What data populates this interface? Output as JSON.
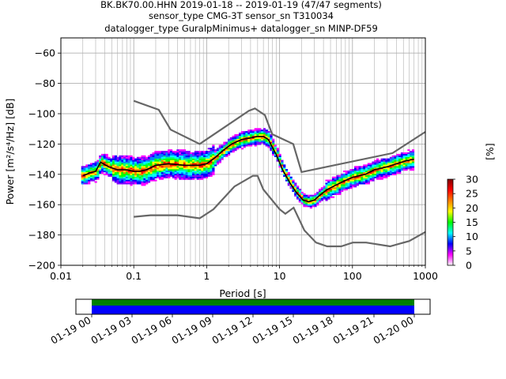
{
  "chart_data": {
    "type": "heatmap",
    "title_lines": [
      "BK.BK70.00.HHN   2019-01-18 -- 2019-01-19  (47/47 segments)",
      "sensor_type CMG-3T sensor_sn T310034",
      "datalogger_type GuralpMinimus+ datalogger_sn MINP-DF59"
    ],
    "xlabel": "Period [s]",
    "ylabel": "Power [m²/s⁴/Hz] [dB]",
    "xscale": "log",
    "xlim": [
      0.01,
      1000
    ],
    "ylim": [
      -200,
      -50
    ],
    "xtick_labels": [
      "0.01",
      "0.1",
      "1",
      "10",
      "100",
      "1000"
    ],
    "xtick_values": [
      0.01,
      0.1,
      1,
      10,
      100,
      1000
    ],
    "ytick_values": [
      -60,
      -80,
      -100,
      -120,
      -140,
      -160,
      -180,
      -200
    ],
    "grid": true,
    "colorbar": {
      "label": "[%]",
      "range": [
        0,
        30
      ],
      "tick_values": [
        0,
        5,
        10,
        15,
        20,
        25,
        30
      ],
      "colors": [
        "#ffffff",
        "#ff00ff",
        "#0000ff",
        "#00ffff",
        "#00ff00",
        "#ffff00",
        "#ff8000",
        "#ff0000",
        "#800000"
      ]
    },
    "noise_model_color": "#666666",
    "nhnm": {
      "period": [
        0.1,
        0.22,
        0.32,
        0.8,
        3.8,
        4.6,
        6.3,
        7.9,
        15.4,
        20,
        354.8,
        1000
      ],
      "db": [
        -91.5,
        -97.4,
        -110.5,
        -120,
        -98,
        -96.5,
        -101,
        -113.5,
        -120,
        -138.5,
        -126,
        -112
      ]
    },
    "nlnm": {
      "period": [
        0.1,
        0.17,
        0.4,
        0.8,
        1.24,
        2.4,
        4.3,
        5,
        6,
        10,
        12,
        15.6,
        21.9,
        31.6,
        45,
        70,
        101,
        154,
        328,
        600,
        1000
      ],
      "db": [
        -168,
        -167,
        -167,
        -169,
        -163,
        -148,
        -141,
        -141,
        -150,
        -163,
        -166,
        -162,
        -177,
        -185,
        -187.5,
        -187.5,
        -185,
        -185,
        -187.5,
        -184,
        -178
      ]
    },
    "mean_curve": {
      "period": [
        0.02,
        0.025,
        0.03,
        0.035,
        0.045,
        0.06,
        0.08,
        0.1,
        0.12,
        0.15,
        0.2,
        0.3,
        0.5,
        0.8,
        1.0,
        1.3,
        1.7,
        2.2,
        3.0,
        4.0,
        5.0,
        6.0,
        7.0,
        9.0,
        11.0,
        14.0,
        17.0,
        21.0,
        25.0,
        30.0,
        35.0,
        45.0,
        60.0,
        80.0,
        100.0,
        150.0,
        200.0,
        300.0,
        400.0,
        550.0,
        700.0
      ],
      "db": [
        -141,
        -139,
        -138,
        -132,
        -135,
        -137,
        -137,
        -138,
        -138,
        -137,
        -134,
        -133,
        -134,
        -134,
        -133,
        -129,
        -124,
        -120,
        -117,
        -116,
        -115,
        -115,
        -117,
        -127,
        -137,
        -146,
        -152,
        -157,
        -158,
        -157,
        -154,
        -150,
        -147,
        -144,
        -142,
        -140,
        -137,
        -135,
        -133,
        -131,
        -130
      ]
    },
    "timeline": {
      "tick_labels": [
        "01-19 00",
        "01-19 03",
        "01-19 06",
        "01-19 09",
        "01-19 12",
        "01-19 15",
        "01-19 18",
        "01-19 21",
        "01-20 00"
      ],
      "tick_hours": [
        0,
        3,
        6,
        9,
        12,
        15,
        18,
        21,
        24
      ],
      "coverage_hours": [
        0,
        24
      ],
      "bar_colors": [
        "#008000",
        "#0000ff"
      ]
    }
  }
}
